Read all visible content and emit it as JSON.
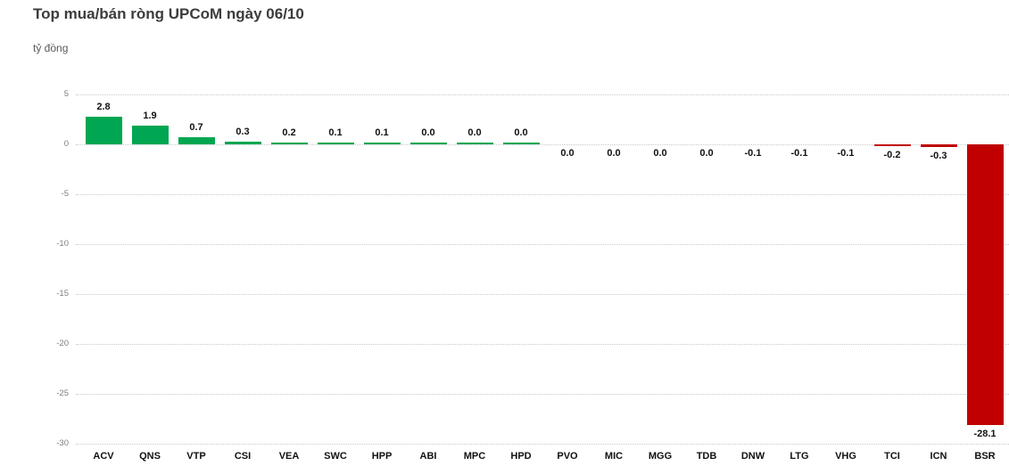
{
  "chart_data": {
    "type": "bar",
    "title": "Top mua/bán ròng UPCoM ngày 06/10",
    "ylabel": "tỷ đồng",
    "xlabel": "",
    "categories": [
      "ACV",
      "QNS",
      "VTP",
      "CSI",
      "VEA",
      "SWC",
      "HPP",
      "ABI",
      "MPC",
      "HPD",
      "PVO",
      "MIC",
      "MGG",
      "TDB",
      "DNW",
      "LTG",
      "VHG",
      "TCI",
      "ICN",
      "BSR"
    ],
    "values": [
      2.8,
      1.9,
      0.7,
      0.3,
      0.2,
      0.1,
      0.1,
      0.0,
      0.0,
      0.0,
      0.0,
      0.0,
      0.0,
      0.0,
      -0.1,
      -0.1,
      -0.1,
      -0.2,
      -0.3,
      -28.1
    ],
    "value_labels": [
      "2.8",
      "1.9",
      "0.7",
      "0.3",
      "0.2",
      "0.1",
      "0.1",
      "0.0",
      "0.0",
      "0.0",
      "0.0",
      "0.0",
      "0.0",
      "0.0",
      "-0.1",
      "-0.1",
      "-0.1",
      "-0.2",
      "-0.3",
      "-28.1"
    ],
    "directions": [
      "up",
      "up",
      "up",
      "up",
      "up",
      "up",
      "up",
      "up",
      "up",
      "up",
      "down",
      "down",
      "down",
      "down",
      "down",
      "down",
      "down",
      "down",
      "down",
      "down"
    ],
    "yticks": [
      5,
      0,
      -5,
      -10,
      -15,
      -20,
      -25,
      -30
    ],
    "ylim": [
      -30,
      5
    ],
    "grid": true,
    "legend": false,
    "colors": {
      "positive": "#00A651",
      "negative": "#C00000",
      "grid": "#C9C9C9",
      "tick_text": "#7F7F7F",
      "label_text": "#111111",
      "title_text": "#3C3C3C",
      "unit_text": "#595959"
    }
  }
}
